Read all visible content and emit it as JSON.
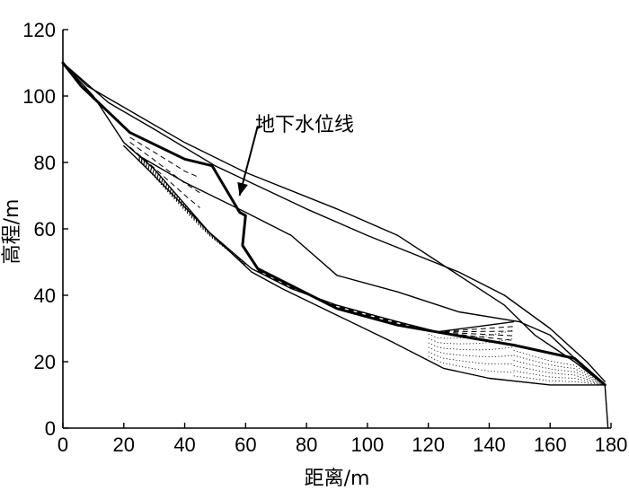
{
  "chart_data": {
    "type": "line",
    "title": "",
    "xlabel": "距离/m",
    "ylabel": "高程/m",
    "xlim": [
      0,
      180
    ],
    "ylim": [
      0,
      120
    ],
    "xticks": [
      0,
      20,
      40,
      60,
      80,
      100,
      120,
      140,
      160,
      180
    ],
    "yticks": [
      0,
      20,
      40,
      60,
      80,
      100,
      120
    ],
    "grid": false,
    "annotation": {
      "text": "地下水位线",
      "points_to": [
        58,
        70
      ],
      "label_at": [
        64,
        91
      ]
    },
    "series": [
      {
        "role": "outer-slope",
        "style": "thin",
        "points": [
          [
            0,
            110
          ],
          [
            8,
            103
          ],
          [
            40,
            86
          ],
          [
            60,
            77
          ],
          [
            90,
            66
          ],
          [
            110,
            58
          ],
          [
            130,
            46
          ],
          [
            145,
            37
          ],
          [
            155,
            28
          ],
          [
            168,
            20
          ],
          [
            175,
            15
          ],
          [
            178,
            13
          ]
        ]
      },
      {
        "role": "upper-slip-surface",
        "style": "thin",
        "points": [
          [
            0,
            110
          ],
          [
            15,
            98
          ],
          [
            30,
            90
          ],
          [
            50,
            79
          ],
          [
            80,
            66
          ],
          [
            100,
            58
          ],
          [
            130,
            47
          ],
          [
            145,
            40
          ],
          [
            160,
            30
          ],
          [
            172,
            20
          ],
          [
            178,
            14
          ]
        ]
      },
      {
        "role": "groundwater-line",
        "style": "bold",
        "points": [
          [
            0,
            110
          ],
          [
            6,
            103
          ],
          [
            22,
            89
          ],
          [
            40,
            81
          ],
          [
            49,
            79
          ],
          [
            58,
            65
          ],
          [
            60,
            64
          ],
          [
            59,
            55
          ],
          [
            64,
            48
          ],
          [
            90,
            36
          ],
          [
            110,
            31
          ],
          [
            135,
            27
          ],
          [
            148,
            25
          ],
          [
            168,
            21
          ],
          [
            178,
            13
          ]
        ]
      },
      {
        "role": "inner-failure-upper",
        "style": "thin",
        "points": [
          [
            25,
            82
          ],
          [
            40,
            74
          ],
          [
            60,
            65
          ],
          [
            75,
            58
          ],
          [
            90,
            46
          ],
          [
            110,
            41
          ],
          [
            130,
            35
          ],
          [
            150,
            32
          ],
          [
            160,
            28
          ],
          [
            175,
            15
          ]
        ]
      },
      {
        "role": "inner-failure-lower",
        "style": "thin",
        "points": [
          [
            20,
            85
          ],
          [
            30,
            76
          ],
          [
            48,
            59
          ],
          [
            62,
            48
          ],
          [
            75,
            42
          ],
          [
            90,
            37
          ],
          [
            110,
            32
          ],
          [
            123,
            29
          ],
          [
            148,
            32
          ]
        ]
      },
      {
        "role": "lower-slope",
        "style": "thin",
        "points": [
          [
            0,
            110
          ],
          [
            10,
            100
          ],
          [
            20,
            86
          ],
          [
            30,
            78
          ],
          [
            48,
            59
          ],
          [
            62,
            47
          ],
          [
            72,
            42
          ],
          [
            90,
            34
          ],
          [
            108,
            26
          ],
          [
            125,
            18
          ],
          [
            140,
            15
          ],
          [
            160,
            13
          ],
          [
            178,
            13
          ],
          [
            179,
            0
          ]
        ]
      }
    ],
    "dashed_curves": [
      {
        "role": "upper-lens-dashed",
        "count": 3,
        "zone": [
          [
            22,
            89
          ],
          [
            45,
            77
          ]
        ]
      },
      {
        "role": "lower-lens-dashed",
        "count": 4,
        "zone": [
          [
            64,
            48
          ],
          [
            168,
            21
          ]
        ]
      }
    ],
    "dotted_zones": [
      {
        "role": "upper-dotted-zone",
        "range_x": [
          25,
          60
        ]
      },
      {
        "role": "lower-dotted-zone",
        "range_x": [
          120,
          178
        ]
      }
    ]
  }
}
